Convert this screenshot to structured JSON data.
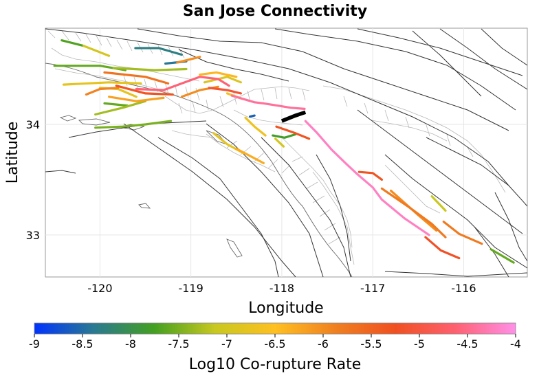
{
  "chart_data": {
    "type": "map",
    "title": "San Jose Connectivity",
    "xlabel": "Longitude",
    "ylabel": "Latitude",
    "xlim": [
      -120.6,
      -115.3
    ],
    "ylim": [
      32.62,
      34.87
    ],
    "xticks": [
      -120,
      -119,
      -118,
      -117,
      -116
    ],
    "xtick_labels": [
      "-120",
      "-119",
      "-118",
      "-117",
      "-116"
    ],
    "yticks": [
      33,
      34
    ],
    "ytick_labels": [
      "33",
      "34"
    ],
    "grid": true,
    "colorbar": {
      "label": "Log10 Co-rupture Rate",
      "range": [
        -9,
        -4
      ],
      "ticks": [
        -9,
        -8.5,
        -8,
        -7.5,
        -7,
        -6.5,
        -6,
        -5.5,
        -5,
        -4.5,
        -4
      ],
      "tick_labels": [
        "-9",
        "-8.5",
        "-8",
        "-7.5",
        "-7",
        "-6.5",
        "-6",
        "-5.5",
        "-5",
        "-4.5",
        "-4"
      ],
      "stops": [
        "#0033ff",
        "#2a7a90",
        "#44a020",
        "#c8c820",
        "#ffc020",
        "#f08020",
        "#f05020",
        "#ff6070",
        "#ff90e8"
      ]
    },
    "source_fault": {
      "name": "San Jose",
      "color": "#000000",
      "path": [
        [
          -118.0,
          34.03
        ],
        [
          -117.85,
          34.08
        ],
        [
          -117.74,
          34.11
        ]
      ]
    },
    "colored_faults": [
      {
        "value": -7.7,
        "path": [
          [
            -120.42,
            34.76
          ],
          [
            -120.18,
            34.71
          ]
        ]
      },
      {
        "value": -7.0,
        "path": [
          [
            -120.18,
            34.71
          ],
          [
            -119.9,
            34.62
          ]
        ]
      },
      {
        "value": -7.6,
        "path": [
          [
            -120.5,
            34.53
          ],
          [
            -120.0,
            34.53
          ],
          [
            -119.72,
            34.49
          ]
        ]
      },
      {
        "value": -7.3,
        "path": [
          [
            -119.85,
            34.51
          ],
          [
            -119.4,
            34.49
          ],
          [
            -119.05,
            34.5
          ]
        ]
      },
      {
        "value": -8.3,
        "path": [
          [
            -119.61,
            34.69
          ],
          [
            -119.35,
            34.69
          ],
          [
            -119.1,
            34.63
          ]
        ]
      },
      {
        "value": -8.4,
        "path": [
          [
            -119.28,
            34.55
          ],
          [
            -119.05,
            34.57
          ]
        ]
      },
      {
        "value": -6.0,
        "path": [
          [
            -119.15,
            34.56
          ],
          [
            -118.9,
            34.61
          ]
        ]
      },
      {
        "value": -6.8,
        "path": [
          [
            -120.4,
            34.36
          ],
          [
            -119.9,
            34.38
          ],
          [
            -119.55,
            34.37
          ]
        ]
      },
      {
        "value": -5.7,
        "path": [
          [
            -119.95,
            34.47
          ],
          [
            -119.5,
            34.43
          ],
          [
            -119.25,
            34.37
          ]
        ]
      },
      {
        "value": -5.3,
        "path": [
          [
            -119.82,
            34.35
          ],
          [
            -119.5,
            34.28
          ],
          [
            -119.2,
            34.27
          ]
        ]
      },
      {
        "value": -4.6,
        "path": [
          [
            -119.6,
            34.32
          ],
          [
            -119.3,
            34.31
          ],
          [
            -119.1,
            34.37
          ],
          [
            -118.9,
            34.43
          ],
          [
            -118.7,
            34.41
          ],
          [
            -118.58,
            34.35
          ]
        ]
      },
      {
        "value": -6.8,
        "path": [
          [
            -120.0,
            34.33
          ],
          [
            -119.8,
            34.32
          ],
          [
            -119.6,
            34.25
          ]
        ]
      },
      {
        "value": -5.9,
        "path": [
          [
            -120.15,
            34.27
          ],
          [
            -120.0,
            34.32
          ],
          [
            -119.8,
            34.33
          ]
        ]
      },
      {
        "value": -7.6,
        "path": [
          [
            -119.95,
            34.19
          ],
          [
            -119.7,
            34.17
          ]
        ]
      },
      {
        "value": -6.2,
        "path": [
          [
            -119.9,
            34.25
          ],
          [
            -119.6,
            34.21
          ],
          [
            -119.3,
            34.24
          ]
        ]
      },
      {
        "value": -7.3,
        "path": [
          [
            -120.05,
            34.09
          ],
          [
            -119.75,
            34.15
          ],
          [
            -119.5,
            34.21
          ]
        ]
      },
      {
        "value": -7.5,
        "path": [
          [
            -120.05,
            33.97
          ],
          [
            -119.75,
            33.98
          ],
          [
            -119.5,
            34.0
          ],
          [
            -119.22,
            34.03
          ]
        ]
      },
      {
        "value": -6.0,
        "path": [
          [
            -119.1,
            34.25
          ],
          [
            -118.9,
            34.31
          ],
          [
            -118.7,
            34.34
          ]
        ]
      },
      {
        "value": -6.4,
        "path": [
          [
            -118.9,
            34.45
          ],
          [
            -118.72,
            34.47
          ],
          [
            -118.5,
            34.43
          ]
        ]
      },
      {
        "value": -6.9,
        "path": [
          [
            -118.85,
            34.38
          ],
          [
            -118.6,
            34.43
          ],
          [
            -118.45,
            34.38
          ]
        ]
      },
      {
        "value": -5.1,
        "path": [
          [
            -118.8,
            34.33
          ],
          [
            -118.6,
            34.31
          ],
          [
            -118.45,
            34.28
          ]
        ]
      },
      {
        "value": -6.6,
        "path": [
          [
            -118.6,
            34.28
          ],
          [
            -118.43,
            34.23
          ]
        ]
      },
      {
        "value": -4.4,
        "path": [
          [
            -118.55,
            34.26
          ],
          [
            -118.3,
            34.2
          ],
          [
            -118.2,
            34.19
          ],
          [
            -118.05,
            34.17
          ],
          [
            -117.9,
            34.15
          ],
          [
            -117.75,
            34.14
          ]
        ]
      },
      {
        "value": -8.6,
        "path": [
          [
            -118.35,
            34.07
          ],
          [
            -118.3,
            34.08
          ]
        ]
      },
      {
        "value": -6.7,
        "path": [
          [
            -118.4,
            34.06
          ],
          [
            -118.3,
            33.98
          ],
          [
            -118.18,
            33.9
          ]
        ]
      },
      {
        "value": -6.8,
        "path": [
          [
            -118.75,
            33.92
          ],
          [
            -118.6,
            33.82
          ],
          [
            -118.42,
            33.74
          ]
        ]
      },
      {
        "value": -6.3,
        "path": [
          [
            -118.5,
            33.78
          ],
          [
            -118.2,
            33.65
          ]
        ]
      },
      {
        "value": -7.8,
        "path": [
          [
            -118.1,
            33.9
          ],
          [
            -117.97,
            33.88
          ],
          [
            -117.85,
            33.91
          ]
        ]
      },
      {
        "value": -7.0,
        "path": [
          [
            -118.07,
            33.87
          ],
          [
            -117.98,
            33.8
          ]
        ]
      },
      {
        "value": -5.3,
        "path": [
          [
            -118.06,
            33.98
          ],
          [
            -117.85,
            33.92
          ],
          [
            -117.7,
            33.87
          ]
        ]
      },
      {
        "value": -6.0,
        "path": [
          [
            -117.92,
            34.05
          ],
          [
            -117.82,
            34.08
          ]
        ]
      },
      {
        "value": -4.2,
        "path": [
          [
            -117.74,
            34.03
          ],
          [
            -117.62,
            33.93
          ],
          [
            -117.45,
            33.77
          ],
          [
            -117.3,
            33.65
          ],
          [
            -117.17,
            33.55
          ],
          [
            -117.0,
            33.43
          ],
          [
            -116.9,
            33.32
          ],
          [
            -116.65,
            33.15
          ],
          [
            -116.38,
            33.0
          ]
        ]
      },
      {
        "value": -5.3,
        "path": [
          [
            -117.15,
            33.57
          ],
          [
            -117.0,
            33.56
          ],
          [
            -116.9,
            33.5
          ]
        ]
      },
      {
        "value": -5.8,
        "path": [
          [
            -116.9,
            33.42
          ],
          [
            -116.6,
            33.25
          ],
          [
            -116.35,
            33.1
          ],
          [
            -116.2,
            32.98
          ]
        ]
      },
      {
        "value": -6.0,
        "path": [
          [
            -116.8,
            33.4
          ],
          [
            -116.5,
            33.18
          ],
          [
            -116.3,
            33.04
          ]
        ]
      },
      {
        "value": -7.1,
        "path": [
          [
            -116.35,
            33.35
          ],
          [
            -116.2,
            33.22
          ]
        ]
      },
      {
        "value": -5.8,
        "path": [
          [
            -116.22,
            33.12
          ],
          [
            -116.05,
            33.01
          ],
          [
            -115.8,
            32.92
          ]
        ]
      },
      {
        "value": -5.2,
        "path": [
          [
            -116.42,
            32.98
          ],
          [
            -116.25,
            32.86
          ],
          [
            -116.05,
            32.79
          ]
        ]
      },
      {
        "value": -7.6,
        "path": [
          [
            -115.7,
            32.87
          ],
          [
            -115.45,
            32.75
          ]
        ]
      }
    ]
  }
}
